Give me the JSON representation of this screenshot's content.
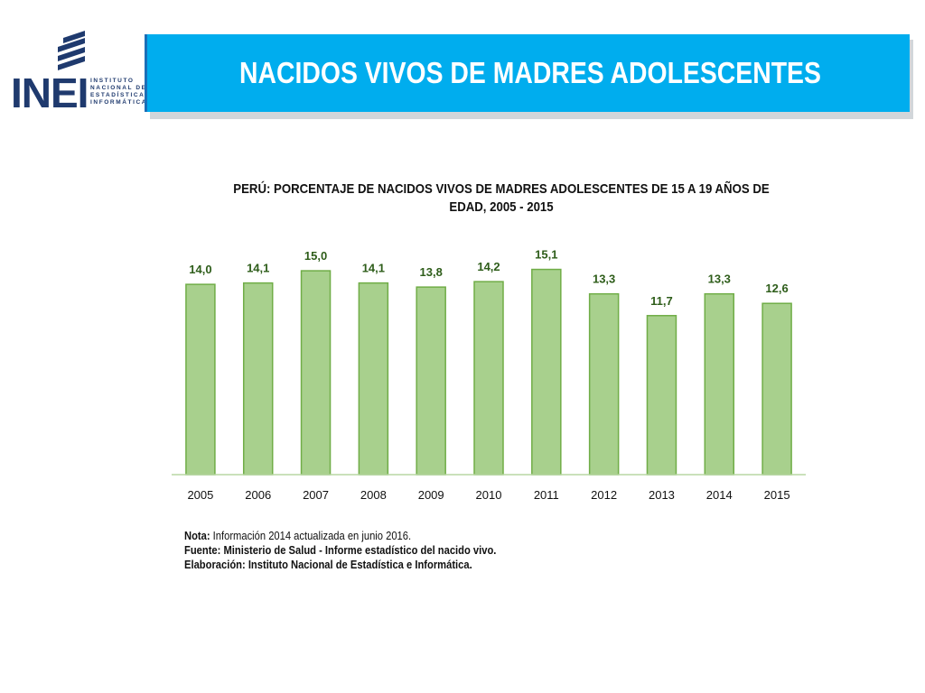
{
  "header": {
    "title": "NACIDOS VIVOS DE MADRES ADOLESCENTES",
    "logo_text": "INEI",
    "logo_subtitle": [
      "INSTITUTO",
      "NACIONAL DE",
      "ESTADÍSTICA E",
      "INFORMÁTICA"
    ]
  },
  "colors": {
    "title_bar": "#00adee",
    "bar_fill": "#a8d08d",
    "bar_stroke": "#70ad47",
    "label_color": "#2e5d1a"
  },
  "chart_data": {
    "type": "bar",
    "title": "PERÚ: PORCENTAJE DE NACIDOS VIVOS DE MADRES ADOLESCENTES DE 15 A 19 AÑOS DE EDAD, 2005 - 2015",
    "categories": [
      "2005",
      "2006",
      "2007",
      "2008",
      "2009",
      "2010",
      "2011",
      "2012",
      "2013",
      "2014",
      "2015"
    ],
    "values": [
      14.0,
      14.1,
      15.0,
      14.1,
      13.8,
      14.2,
      15.1,
      13.3,
      11.7,
      13.3,
      12.6
    ],
    "value_labels": [
      "14,0",
      "14,1",
      "15,0",
      "14,1",
      "13,8",
      "14,2",
      "15,1",
      "13,3",
      "11,7",
      "13,3",
      "12,6"
    ],
    "ylim": [
      0,
      16
    ],
    "xlabel": "",
    "ylabel": "",
    "grid": false,
    "legend": "none"
  },
  "notes": {
    "nota_label": "Nota:",
    "nota_text": " Información 2014 actualizada en junio 2016.",
    "fuente": "Fuente: Ministerio de Salud - Informe estadístico del nacido vivo.",
    "elaboracion": "Elaboración: Instituto Nacional de Estadística e Informática."
  }
}
